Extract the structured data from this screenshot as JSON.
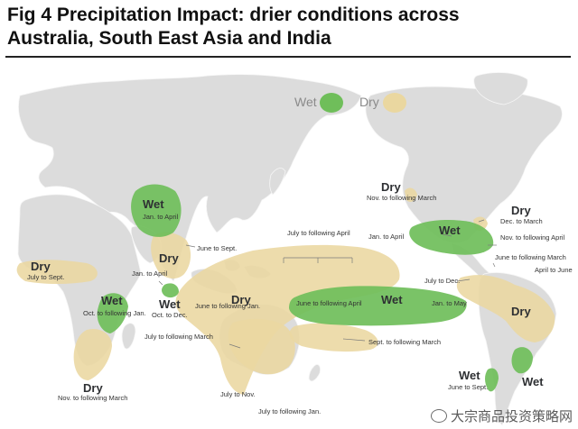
{
  "title_line1": "Fig 4    Precipitation Impact: drier conditions across",
  "title_line2": "Australia, South East Asia and India",
  "legend": {
    "wet": "Wet",
    "dry": "Dry"
  },
  "colors": {
    "wet": "#6fbe5a",
    "dry": "#ead7a0",
    "land": "#dcdcdc",
    "ocean": "#ffffff",
    "border": "#ffffff"
  },
  "regions": {
    "dry_west_africa": {
      "word": "Dry",
      "period": "July to Sept."
    },
    "wet_east_africa": {
      "word": "Wet",
      "period": "Oct. to following Jan."
    },
    "dry_south_africa": {
      "word": "Dry",
      "period": "Nov. to following March"
    },
    "wet_india": {
      "word": "Wet",
      "period": "Jan. to April"
    },
    "dry_india": {
      "word": "Dry",
      "period": "June to Sept."
    },
    "wet_srilanka": {
      "word": "Wet",
      "period": "Oct. to Dec.",
      "period2": "Jan. to April"
    },
    "dry_indonesia": {
      "word": "Dry",
      "period": "June to following Jan."
    },
    "dry_pacific": {
      "period": "July to following April"
    },
    "dry_australia": {
      "period": "July to following March",
      "period2": "July to Nov.",
      "period3": "July to following Jan."
    },
    "dry_sept": {
      "period": "Sept. to following March"
    },
    "wet_pacific": {
      "word": "Wet",
      "period": "June to following April",
      "period2": "Jan. to May"
    },
    "dry_north_america": {
      "word": "Dry",
      "period": "Nov. to following March"
    },
    "wet_us_south": {
      "word": "Wet",
      "period": "Jan. to April",
      "period2": "Nov. to following April"
    },
    "dry_us_east": {
      "word": "Dry",
      "period": "Dec. to March"
    },
    "dry_caribbean": {
      "period": "June to following March"
    },
    "dry_amazon": {
      "word": "Dry",
      "period": "July to Dec.",
      "period2": "April to June"
    },
    "wet_chile": {
      "word": "Wet",
      "period": "June to Sept."
    },
    "wet_argentina": {
      "word": "Wet",
      "period": ""
    }
  },
  "brand": "大宗商品投资策略网"
}
